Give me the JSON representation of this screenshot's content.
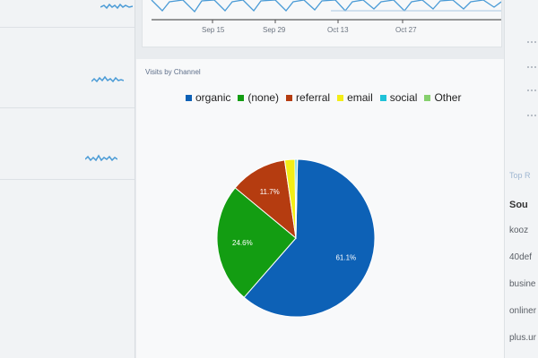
{
  "trend_chart": {
    "x_labels": [
      "Sep 15",
      "Sep 29",
      "Oct 13",
      "Oct 27"
    ]
  },
  "pie_card": {
    "title": "Visits by Channel"
  },
  "colors": {
    "organic": "#0d61b6",
    "none": "#139d12",
    "referral": "#b53c10",
    "email": "#f3ed16",
    "social": "#1fc2d8",
    "other": "#86d06d",
    "accent_line": "#4a9bd6"
  },
  "chart_data": {
    "type": "pie",
    "title": "Visits by Channel",
    "series": [
      {
        "name": "organic",
        "value": 61.1,
        "label": "61.1%"
      },
      {
        "name": "(none)",
        "value": 24.6,
        "label": "24.6%"
      },
      {
        "name": "referral",
        "value": 11.7,
        "label": "11.7%"
      },
      {
        "name": "email",
        "value": 2.1,
        "label": ""
      },
      {
        "name": "social",
        "value": 0.4,
        "label": ""
      },
      {
        "name": "Other",
        "value": 0.1,
        "label": ""
      }
    ],
    "legend_position": "top"
  },
  "right_panel": {
    "heading": "Top R",
    "column_header": "Sou",
    "rows": [
      "kooz",
      "40def",
      "busine",
      "onliner",
      "plus.ur"
    ]
  }
}
